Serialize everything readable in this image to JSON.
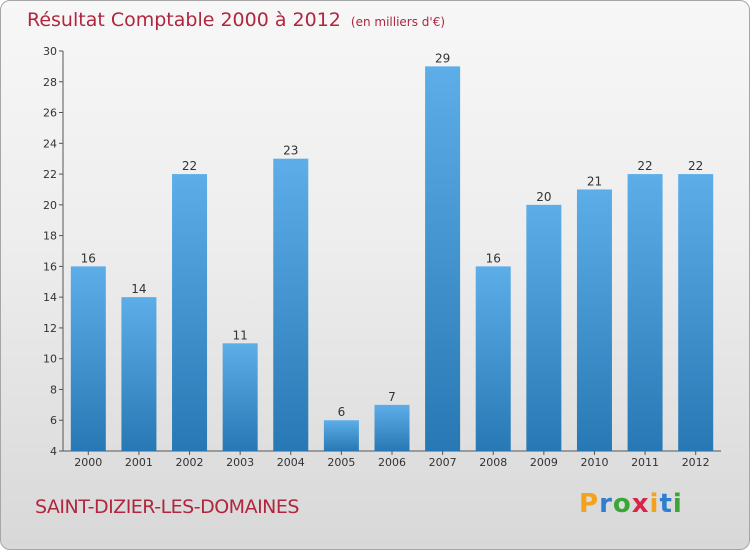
{
  "title": "Résultat Comptable 2000 à 2012",
  "subtitle": "(en milliers d'€)",
  "place": "SAINT-DIZIER-LES-DOMAINES",
  "logo": {
    "letters": [
      "P",
      "r",
      "o",
      "x",
      "i",
      "t",
      "i"
    ],
    "colors": [
      "#f2a21c",
      "#2f7fd1",
      "#3aa635",
      "#d8254a",
      "#f2a21c",
      "#2f7fd1",
      "#3aa635"
    ]
  },
  "colors": {
    "bar_top": "#5daee8",
    "bar_bottom": "#2778b4",
    "text": "#b0263f"
  },
  "chart_data": {
    "type": "bar",
    "categories": [
      "2000",
      "2001",
      "2002",
      "2003",
      "2004",
      "2005",
      "2006",
      "2007",
      "2008",
      "2009",
      "2010",
      "2011",
      "2012"
    ],
    "values": [
      16,
      14,
      22,
      11,
      23,
      6,
      7,
      29,
      16,
      20,
      21,
      22,
      22
    ],
    "yticks": [
      4,
      6,
      8,
      10,
      12,
      14,
      16,
      18,
      20,
      22,
      24,
      26,
      28,
      30
    ],
    "ylim": [
      4,
      30
    ],
    "grid": false,
    "data_labels": true
  }
}
